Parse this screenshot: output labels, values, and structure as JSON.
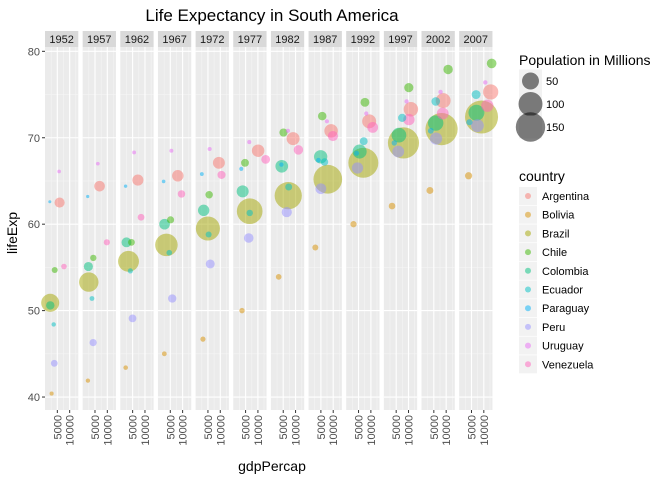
{
  "chart_data": {
    "type": "scatter",
    "title": "Life Expectancy in South America",
    "xlabel": "gdpPercap",
    "ylabel": "lifeExp",
    "facets": [
      "1952",
      "1957",
      "1962",
      "1967",
      "1972",
      "1977",
      "1982",
      "1987",
      "1992",
      "1997",
      "2002",
      "2007"
    ],
    "facet_by": "year",
    "xlim": [
      0,
      13500
    ],
    "x_ticks": [
      5000,
      10000
    ],
    "x_tick_labels": [
      "5000",
      "10000"
    ],
    "ylim": [
      38.5,
      80.5
    ],
    "y_ticks": [
      40,
      50,
      60,
      70,
      80
    ],
    "y_tick_labels": [
      "40",
      "50",
      "60",
      "70",
      "80"
    ],
    "grid": true,
    "size_legend": {
      "title": "Population in Millions",
      "values": [
        50,
        100,
        150
      ]
    },
    "color_legend": {
      "title": "country",
      "entries": [
        "Argentina",
        "Bolivia",
        "Brazil",
        "Chile",
        "Colombia",
        "Ecuador",
        "Paraguay",
        "Peru",
        "Uruguay",
        "Venezuela"
      ]
    },
    "colors": {
      "Argentina": "#f8766d",
      "Bolivia": "#d89000",
      "Brazil": "#a3a500",
      "Chile": "#39b600",
      "Colombia": "#00bf7d",
      "Ecuador": "#00bfc4",
      "Paraguay": "#00b0f6",
      "Peru": "#9590ff",
      "Uruguay": "#e76bf3",
      "Venezuela": "#ff62bc"
    },
    "legend_placement": "right",
    "series": [
      {
        "name": "Argentina",
        "points": [
          {
            "year": "1952",
            "x": 5911,
            "y": 62.5,
            "pop": 17.9
          },
          {
            "year": "1957",
            "x": 6857,
            "y": 64.4,
            "pop": 19.6
          },
          {
            "year": "1962",
            "x": 7133,
            "y": 65.1,
            "pop": 21.3
          },
          {
            "year": "1967",
            "x": 8053,
            "y": 65.6,
            "pop": 22.9
          },
          {
            "year": "1972",
            "x": 9443,
            "y": 67.1,
            "pop": 24.8
          },
          {
            "year": "1977",
            "x": 10079,
            "y": 68.5,
            "pop": 26.98
          },
          {
            "year": "1982",
            "x": 8998,
            "y": 69.9,
            "pop": 29.3
          },
          {
            "year": "1987",
            "x": 9140,
            "y": 70.8,
            "pop": 31.6
          },
          {
            "year": "1992",
            "x": 9308,
            "y": 71.9,
            "pop": 33.96
          },
          {
            "year": "1997",
            "x": 10967,
            "y": 73.3,
            "pop": 36.2
          },
          {
            "year": "2002",
            "x": 8798,
            "y": 74.3,
            "pop": 38.3
          },
          {
            "year": "2007",
            "x": 12779,
            "y": 75.3,
            "pop": 40.3
          }
        ]
      },
      {
        "name": "Bolivia",
        "points": [
          {
            "year": "1952",
            "x": 2677,
            "y": 40.4,
            "pop": 2.9
          },
          {
            "year": "1957",
            "x": 2128,
            "y": 41.9,
            "pop": 3.2
          },
          {
            "year": "1962",
            "x": 2181,
            "y": 43.4,
            "pop": 3.6
          },
          {
            "year": "1967",
            "x": 2587,
            "y": 45.0,
            "pop": 4.0
          },
          {
            "year": "1972",
            "x": 2980,
            "y": 46.7,
            "pop": 4.6
          },
          {
            "year": "1977",
            "x": 3548,
            "y": 50.0,
            "pop": 5.1
          },
          {
            "year": "1982",
            "x": 3156,
            "y": 53.9,
            "pop": 5.6
          },
          {
            "year": "1987",
            "x": 2753,
            "y": 57.3,
            "pop": 6.2
          },
          {
            "year": "1992",
            "x": 2962,
            "y": 60.0,
            "pop": 6.9
          },
          {
            "year": "1997",
            "x": 3326,
            "y": 62.1,
            "pop": 7.7
          },
          {
            "year": "2002",
            "x": 3413,
            "y": 63.9,
            "pop": 8.4
          },
          {
            "year": "2007",
            "x": 3822,
            "y": 65.6,
            "pop": 9.1
          }
        ]
      },
      {
        "name": "Brazil",
        "points": [
          {
            "year": "1952",
            "x": 2109,
            "y": 50.9,
            "pop": 56.6
          },
          {
            "year": "1957",
            "x": 2487,
            "y": 53.3,
            "pop": 65.6
          },
          {
            "year": "1962",
            "x": 3337,
            "y": 55.7,
            "pop": 76.0
          },
          {
            "year": "1967",
            "x": 3430,
            "y": 57.6,
            "pop": 88.0
          },
          {
            "year": "1972",
            "x": 4986,
            "y": 59.5,
            "pop": 100.8
          },
          {
            "year": "1977",
            "x": 6660,
            "y": 61.5,
            "pop": 114.3
          },
          {
            "year": "1982",
            "x": 7031,
            "y": 63.3,
            "pop": 128.96
          },
          {
            "year": "1987",
            "x": 7807,
            "y": 65.2,
            "pop": 142.9
          },
          {
            "year": "1992",
            "x": 6950,
            "y": 67.1,
            "pop": 155.98
          },
          {
            "year": "1997",
            "x": 7958,
            "y": 69.4,
            "pop": 168.5
          },
          {
            "year": "2002",
            "x": 8131,
            "y": 71.0,
            "pop": 179.9
          },
          {
            "year": "2007",
            "x": 9066,
            "y": 72.4,
            "pop": 190.0
          }
        ]
      },
      {
        "name": "Chile",
        "points": [
          {
            "year": "1952",
            "x": 3940,
            "y": 54.7,
            "pop": 6.4
          },
          {
            "year": "1957",
            "x": 4316,
            "y": 56.1,
            "pop": 7.0
          },
          {
            "year": "1962",
            "x": 4519,
            "y": 57.9,
            "pop": 7.96
          },
          {
            "year": "1967",
            "x": 5107,
            "y": 60.5,
            "pop": 8.9
          },
          {
            "year": "1972",
            "x": 5494,
            "y": 63.4,
            "pop": 9.7
          },
          {
            "year": "1977",
            "x": 4757,
            "y": 67.1,
            "pop": 10.6
          },
          {
            "year": "1982",
            "x": 5096,
            "y": 70.6,
            "pop": 11.5
          },
          {
            "year": "1987",
            "x": 5547,
            "y": 72.5,
            "pop": 12.5
          },
          {
            "year": "1992",
            "x": 7596,
            "y": 74.1,
            "pop": 13.6
          },
          {
            "year": "1997",
            "x": 10118,
            "y": 75.8,
            "pop": 14.6
          },
          {
            "year": "2002",
            "x": 10779,
            "y": 77.9,
            "pop": 15.5
          },
          {
            "year": "2007",
            "x": 13172,
            "y": 78.6,
            "pop": 16.3
          }
        ]
      },
      {
        "name": "Colombia",
        "points": [
          {
            "year": "1952",
            "x": 2144,
            "y": 50.6,
            "pop": 12.4
          },
          {
            "year": "1957",
            "x": 2324,
            "y": 55.1,
            "pop": 14.5
          },
          {
            "year": "1962",
            "x": 2493,
            "y": 57.9,
            "pop": 17.0
          },
          {
            "year": "1967",
            "x": 2679,
            "y": 60.0,
            "pop": 19.8
          },
          {
            "year": "1972",
            "x": 3265,
            "y": 61.6,
            "pop": 22.5
          },
          {
            "year": "1977",
            "x": 3816,
            "y": 63.8,
            "pop": 25.1
          },
          {
            "year": "1982",
            "x": 4398,
            "y": 66.7,
            "pop": 27.8
          },
          {
            "year": "1987",
            "x": 4903,
            "y": 67.8,
            "pop": 30.96
          },
          {
            "year": "1992",
            "x": 5445,
            "y": 68.4,
            "pop": 34.2
          },
          {
            "year": "1997",
            "x": 6117,
            "y": 70.3,
            "pop": 37.7
          },
          {
            "year": "2002",
            "x": 5755,
            "y": 71.7,
            "pop": 41.0
          },
          {
            "year": "2007",
            "x": 7007,
            "y": 72.9,
            "pop": 44.2
          }
        ]
      },
      {
        "name": "Ecuador",
        "points": [
          {
            "year": "1952",
            "x": 3522,
            "y": 48.4,
            "pop": 3.5
          },
          {
            "year": "1957",
            "x": 3781,
            "y": 51.4,
            "pop": 4.1
          },
          {
            "year": "1962",
            "x": 4086,
            "y": 54.6,
            "pop": 4.7
          },
          {
            "year": "1967",
            "x": 4580,
            "y": 56.7,
            "pop": 5.4
          },
          {
            "year": "1972",
            "x": 5281,
            "y": 58.8,
            "pop": 6.3
          },
          {
            "year": "1977",
            "x": 6680,
            "y": 61.3,
            "pop": 7.2
          },
          {
            "year": "1982",
            "x": 7214,
            "y": 64.3,
            "pop": 8.4
          },
          {
            "year": "1987",
            "x": 6482,
            "y": 67.2,
            "pop": 9.5
          },
          {
            "year": "1992",
            "x": 7104,
            "y": 69.6,
            "pop": 10.7
          },
          {
            "year": "1997",
            "x": 7429,
            "y": 72.3,
            "pop": 11.9
          },
          {
            "year": "2002",
            "x": 5773,
            "y": 74.2,
            "pop": 12.9
          },
          {
            "year": "2007",
            "x": 6873,
            "y": 75.0,
            "pop": 13.8
          }
        ]
      },
      {
        "name": "Paraguay",
        "points": [
          {
            "year": "1952",
            "x": 1952,
            "y": 62.6,
            "pop": 1.6
          },
          {
            "year": "1957",
            "x": 2046,
            "y": 63.2,
            "pop": 1.8
          },
          {
            "year": "1962",
            "x": 2148,
            "y": 64.4,
            "pop": 2.0
          },
          {
            "year": "1967",
            "x": 2299,
            "y": 64.95,
            "pop": 2.3
          },
          {
            "year": "1972",
            "x": 2523,
            "y": 65.8,
            "pop": 2.6
          },
          {
            "year": "1977",
            "x": 3248,
            "y": 66.4,
            "pop": 2.98
          },
          {
            "year": "1982",
            "x": 4259,
            "y": 66.9,
            "pop": 3.4
          },
          {
            "year": "1987",
            "x": 3998,
            "y": 67.4,
            "pop": 3.9
          },
          {
            "year": "1992",
            "x": 4197,
            "y": 68.2,
            "pop": 4.5
          },
          {
            "year": "1997",
            "x": 4247,
            "y": 69.4,
            "pop": 5.2
          },
          {
            "year": "2002",
            "x": 3784,
            "y": 70.8,
            "pop": 5.9
          },
          {
            "year": "2007",
            "x": 4173,
            "y": 71.8,
            "pop": 6.7
          }
        ]
      },
      {
        "name": "Peru",
        "points": [
          {
            "year": "1952",
            "x": 3759,
            "y": 43.9,
            "pop": 8.0
          },
          {
            "year": "1957",
            "x": 4245,
            "y": 46.3,
            "pop": 9.1
          },
          {
            "year": "1962",
            "x": 4957,
            "y": 49.1,
            "pop": 10.5
          },
          {
            "year": "1967",
            "x": 5788,
            "y": 51.4,
            "pop": 12.1
          },
          {
            "year": "1972",
            "x": 5938,
            "y": 55.4,
            "pop": 13.95
          },
          {
            "year": "1977",
            "x": 6281,
            "y": 58.4,
            "pop": 15.99
          },
          {
            "year": "1982",
            "x": 6435,
            "y": 61.4,
            "pop": 18.1
          },
          {
            "year": "1987",
            "x": 5002,
            "y": 64.1,
            "pop": 20.2
          },
          {
            "year": "1992",
            "x": 4576,
            "y": 66.5,
            "pop": 22.4
          },
          {
            "year": "1997",
            "x": 5838,
            "y": 68.4,
            "pop": 24.2
          },
          {
            "year": "2002",
            "x": 5909,
            "y": 69.9,
            "pop": 25.9
          },
          {
            "year": "2007",
            "x": 7409,
            "y": 71.4,
            "pop": 28.7
          }
        ]
      },
      {
        "name": "Uruguay",
        "points": [
          {
            "year": "1952",
            "x": 5717,
            "y": 66.1,
            "pop": 2.3
          },
          {
            "year": "1957",
            "x": 6151,
            "y": 67.0,
            "pop": 2.4
          },
          {
            "year": "1962",
            "x": 5603,
            "y": 68.3,
            "pop": 2.5
          },
          {
            "year": "1967",
            "x": 5445,
            "y": 68.5,
            "pop": 2.7
          },
          {
            "year": "1972",
            "x": 5703,
            "y": 68.7,
            "pop": 2.8
          },
          {
            "year": "1977",
            "x": 6504,
            "y": 69.5,
            "pop": 2.9
          },
          {
            "year": "1982",
            "x": 6920,
            "y": 70.8,
            "pop": 2.9
          },
          {
            "year": "1987",
            "x": 7452,
            "y": 71.9,
            "pop": 3.0
          },
          {
            "year": "1992",
            "x": 8137,
            "y": 72.8,
            "pop": 3.1
          },
          {
            "year": "1997",
            "x": 9231,
            "y": 74.2,
            "pop": 3.3
          },
          {
            "year": "2002",
            "x": 7727,
            "y": 75.3,
            "pop": 3.4
          },
          {
            "year": "2007",
            "x": 10611,
            "y": 76.4,
            "pop": 3.4
          }
        ]
      },
      {
        "name": "Venezuela",
        "points": [
          {
            "year": "1952",
            "x": 7689,
            "y": 55.1,
            "pop": 5.4
          },
          {
            "year": "1957",
            "x": 9803,
            "y": 57.9,
            "pop": 6.7
          },
          {
            "year": "1962",
            "x": 8423,
            "y": 60.8,
            "pop": 8.1
          },
          {
            "year": "1967",
            "x": 9541,
            "y": 63.5,
            "pop": 9.7
          },
          {
            "year": "1972",
            "x": 10506,
            "y": 65.7,
            "pop": 11.5
          },
          {
            "year": "1977",
            "x": 13144,
            "y": 67.5,
            "pop": 13.5
          },
          {
            "year": "1982",
            "x": 11152,
            "y": 68.6,
            "pop": 15.6
          },
          {
            "year": "1987",
            "x": 9884,
            "y": 70.2,
            "pop": 17.9
          },
          {
            "year": "1992",
            "x": 10733,
            "y": 71.2,
            "pop": 20.3
          },
          {
            "year": "1997",
            "x": 10165,
            "y": 72.1,
            "pop": 22.4
          },
          {
            "year": "2002",
            "x": 8605,
            "y": 72.8,
            "pop": 24.3
          },
          {
            "year": "2007",
            "x": 11416,
            "y": 73.7,
            "pop": 26.1
          }
        ]
      }
    ]
  }
}
